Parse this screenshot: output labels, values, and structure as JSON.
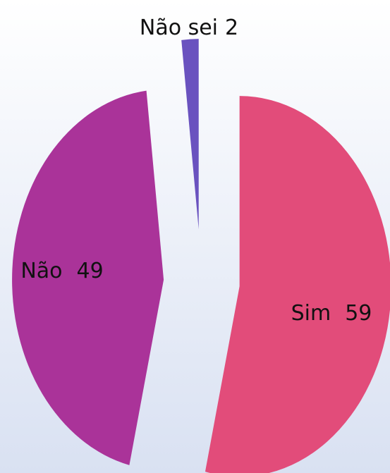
{
  "chart_data": {
    "type": "pie",
    "categories": [
      "Sim",
      "Não",
      "Não sei"
    ],
    "values": [
      59,
      49,
      2
    ],
    "colors": [
      "#e24c7a",
      "#aa3399",
      "#6a52bf"
    ]
  }
}
